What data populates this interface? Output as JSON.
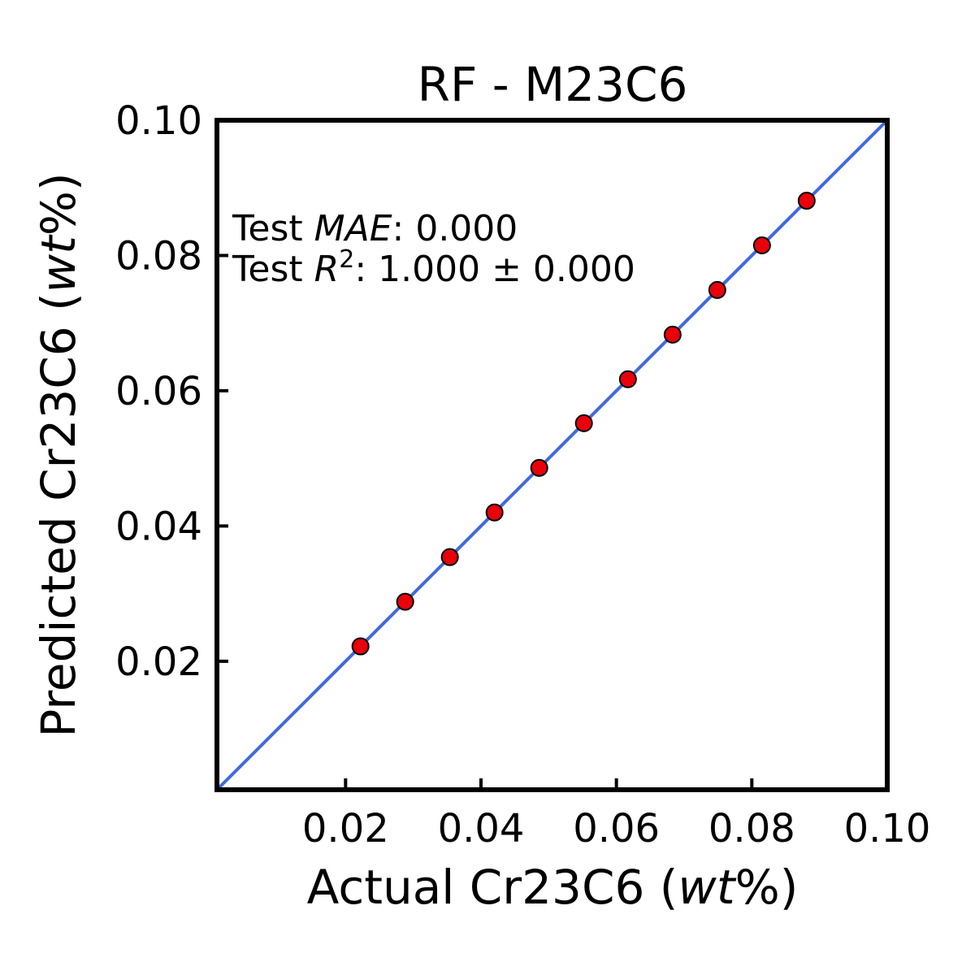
{
  "chart_data": {
    "type": "scatter",
    "title": "RF - M23C6",
    "xlabel": {
      "prefix": "Actual Cr23C6 (",
      "italic": "wt",
      "suffix": "%)"
    },
    "ylabel": {
      "prefix": "Predicted Cr23C6 (",
      "italic": "wt",
      "suffix": "%)"
    },
    "xlim": [
      0.001,
      0.1
    ],
    "ylim": [
      0.001,
      0.1
    ],
    "xticks": [
      0.02,
      0.04,
      0.06,
      0.08,
      0.1
    ],
    "yticks": [
      0.02,
      0.04,
      0.06,
      0.08,
      0.1
    ],
    "xtick_labels": [
      "0.02",
      "0.04",
      "0.06",
      "0.08",
      "0.10"
    ],
    "ytick_labels": [
      "0.02",
      "0.04",
      "0.06",
      "0.08",
      "0.10"
    ],
    "grid": false,
    "series": [
      {
        "marker_color": "#e8000b",
        "points": [
          {
            "x": 0.0222,
            "y": 0.0222
          },
          {
            "x": 0.0288,
            "y": 0.0288
          },
          {
            "x": 0.0354,
            "y": 0.0354
          },
          {
            "x": 0.042,
            "y": 0.042
          },
          {
            "x": 0.0486,
            "y": 0.0486
          },
          {
            "x": 0.0552,
            "y": 0.0552
          },
          {
            "x": 0.0617,
            "y": 0.0617
          },
          {
            "x": 0.0683,
            "y": 0.0683
          },
          {
            "x": 0.0749,
            "y": 0.0749
          },
          {
            "x": 0.0815,
            "y": 0.0815
          },
          {
            "x": 0.0881,
            "y": 0.0881
          }
        ]
      }
    ],
    "reference_line": {
      "from": [
        0.001,
        0.001
      ],
      "to": [
        0.1,
        0.1
      ],
      "color": "#4169e1"
    },
    "annotations": {
      "mae": {
        "prefix": "Test ",
        "italic": "MAE",
        "suffix": ": 0.000"
      },
      "r2": {
        "prefix": "Test ",
        "italic": "R",
        "sup": "2",
        "suffix": ": 1.000 ± 0.000"
      }
    }
  }
}
